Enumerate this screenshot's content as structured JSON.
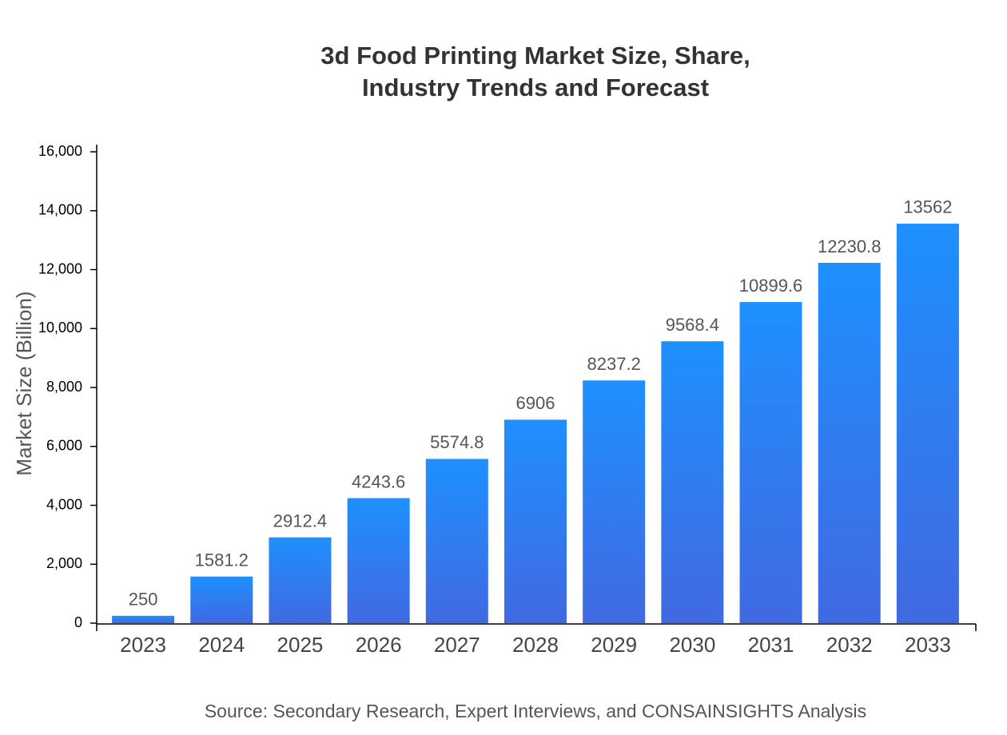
{
  "chart_data": {
    "type": "bar",
    "title": "3d Food Printing Market Size, Share, Industry Trends and Forecast",
    "y_label": "Market Size (Billion)",
    "source": "Source: Secondary Research, Expert Interviews, and CONSAINSIGHTS Analysis",
    "categories": [
      "2023",
      "2024",
      "2025",
      "2026",
      "2027",
      "2028",
      "2029",
      "2030",
      "2031",
      "2032",
      "2033"
    ],
    "values": [
      250,
      1581.2,
      2912.4,
      4243.6,
      5574.8,
      6906,
      8237.2,
      9568.4,
      10899.6,
      12230.8,
      13562
    ],
    "color": [
      "#1e90ff",
      "#4169e1"
    ],
    "ylim": [
      0,
      16000
    ],
    "yticks": [
      0,
      {
        "value": 2000,
        "label": "2,000"
      },
      {
        "value": 4000,
        "label": "4,000"
      },
      {
        "value": 6000,
        "label": "6,000"
      },
      {
        "value": 8000,
        "label": "8,000"
      },
      {
        "value": 10000,
        "label": "10,000"
      },
      {
        "value": 12000,
        "label": "12,000"
      },
      {
        "value": 14000,
        "label": "14,000"
      },
      {
        "value": 16000,
        "label": "16,000"
      }
    ],
    "grid": false
  }
}
